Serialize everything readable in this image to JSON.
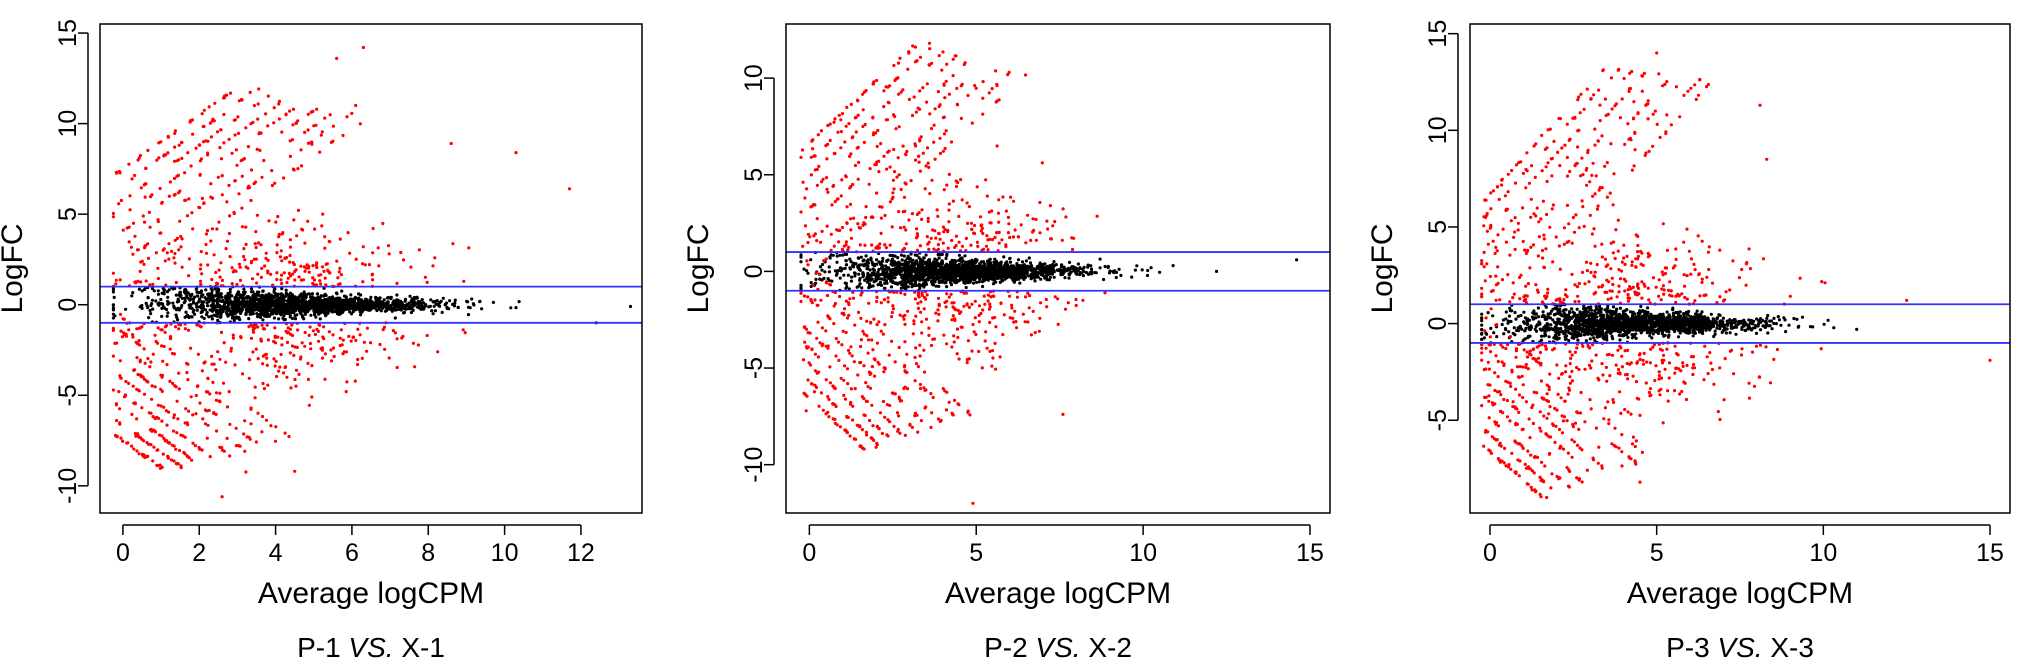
{
  "chart_data": [
    {
      "type": "scatter",
      "caption": {
        "left": "P-1",
        "vs": "VS.",
        "right": "X-1"
      },
      "xlabel": "Average logCPM",
      "ylabel": "LogFC",
      "xlim": [
        -0.6,
        13.6
      ],
      "ylim": [
        -11.5,
        15.5
      ],
      "xticks": [
        0,
        2,
        4,
        6,
        8,
        10,
        12
      ],
      "yticks": [
        -10,
        -5,
        0,
        5,
        10,
        15
      ],
      "thresholds": [
        1,
        -1
      ],
      "grid": false,
      "colors": {
        "significant": "#ff0000",
        "non_significant": "#000000",
        "threshold_line": "#3333ff"
      },
      "upper_band": {
        "x_start": -0.2,
        "y_start": 7.2,
        "slope": 1.5,
        "x_max": 3.2
      },
      "lower_band": {
        "x_start": -0.2,
        "y_start": -7.2,
        "slope": -1.5,
        "x_max": 1.2
      },
      "extreme_points": [
        [
          6.3,
          14.2
        ],
        [
          5.6,
          13.6
        ],
        [
          6.1,
          11.0
        ],
        [
          8.6,
          8.9
        ],
        [
          10.3,
          8.4
        ],
        [
          11.7,
          6.4
        ],
        [
          13.3,
          -0.1
        ],
        [
          12.4,
          -1.0
        ],
        [
          4.5,
          -9.2
        ],
        [
          2.6,
          -10.6
        ],
        [
          1.7,
          -8.4
        ]
      ]
    },
    {
      "type": "scatter",
      "caption": {
        "left": "P-2",
        "vs": "VS.",
        "right": "X-2"
      },
      "xlabel": "Average logCPM",
      "ylabel": "LogFC",
      "xlim": [
        -0.7,
        15.6
      ],
      "ylim": [
        -12.5,
        12.8
      ],
      "xticks": [
        0,
        5,
        10,
        15
      ],
      "yticks": [
        -10,
        -5,
        0,
        5,
        10
      ],
      "thresholds": [
        1,
        -1
      ],
      "grid": false,
      "colors": {
        "significant": "#ff0000",
        "non_significant": "#000000",
        "threshold_line": "#3333ff"
      },
      "upper_band": {
        "x_start": -0.2,
        "y_start": 6.3,
        "slope": 1.6,
        "x_max": 3.3
      },
      "lower_band": {
        "x_start": -0.2,
        "y_start": -6.2,
        "slope": -1.6,
        "x_max": 1.7
      },
      "extreme_points": [
        [
          3.6,
          11.8
        ],
        [
          14.6,
          0.6
        ],
        [
          12.2,
          0.0
        ],
        [
          10.9,
          0.3
        ],
        [
          4.9,
          -12.0
        ],
        [
          2.0,
          -9.1
        ],
        [
          7.6,
          -7.4
        ]
      ]
    },
    {
      "type": "scatter",
      "caption": {
        "left": "P-3",
        "vs": "VS.",
        "right": "X-3"
      },
      "xlabel": "Average logCPM",
      "ylabel": "LogFC",
      "xlim": [
        -0.6,
        15.6
      ],
      "ylim": [
        -9.8,
        15.5
      ],
      "xticks": [
        0,
        5,
        10,
        15
      ],
      "yticks": [
        -5,
        0,
        5,
        10,
        15
      ],
      "thresholds": [
        1,
        -1
      ],
      "grid": false,
      "colors": {
        "significant": "#ff0000",
        "non_significant": "#000000",
        "threshold_line": "#3333ff"
      },
      "upper_band": {
        "x_start": -0.2,
        "y_start": 6.3,
        "slope": 1.9,
        "x_max": 3.5
      },
      "lower_band": {
        "x_start": -0.2,
        "y_start": -6.3,
        "slope": -1.5,
        "x_max": 1.6
      },
      "extreme_points": [
        [
          5.0,
          14.0
        ],
        [
          8.1,
          11.3
        ],
        [
          8.3,
          8.5
        ],
        [
          12.5,
          1.2
        ],
        [
          15.0,
          -1.9
        ],
        [
          11.0,
          -0.3
        ],
        [
          1.7,
          -9.0
        ],
        [
          4.5,
          -8.2
        ]
      ]
    }
  ]
}
